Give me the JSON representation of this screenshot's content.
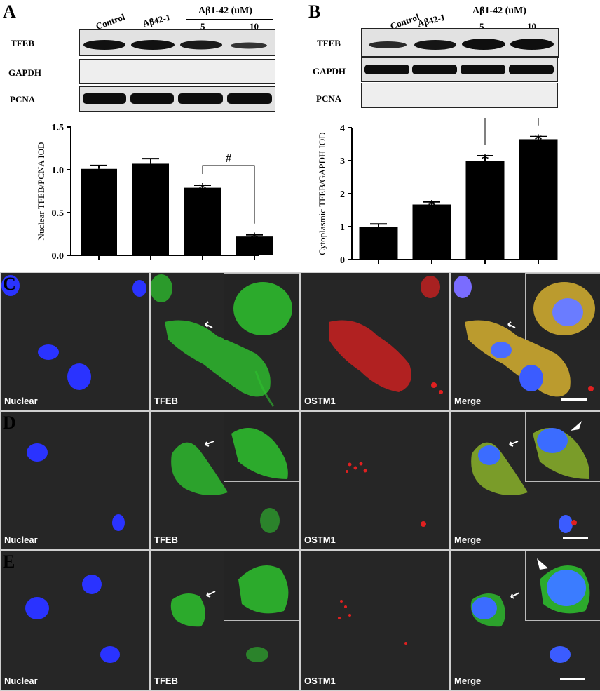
{
  "panel_labels": {
    "a": "A",
    "b": "B",
    "c": "C",
    "d": "D",
    "e": "E"
  },
  "blots": {
    "lane_headers": {
      "control": "Control",
      "reverse": "Aβ42-1",
      "abeta": "Aβ1-42 (uM)",
      "dose_low": "5",
      "dose_high": "10"
    },
    "rows": {
      "tfeb": "TFEB",
      "gapdh": "GAPDH",
      "pcna": "PCNA"
    }
  },
  "chart_data": [
    {
      "type": "bar",
      "categories": [
        "Control",
        "Aβ42-1",
        "Aβ1-42 5uM",
        "Aβ1-42 10uM"
      ],
      "values": [
        1.01,
        1.07,
        0.79,
        0.22
      ],
      "errors": [
        0.04,
        0.06,
        0.03,
        0.02
      ],
      "significance": [
        "",
        "",
        "*",
        "*"
      ],
      "bracket": {
        "from": 2,
        "to": 3,
        "label": "#"
      },
      "ylabel": "Nuclear TFEB/PCNA IOD",
      "ylim": [
        0,
        1.5
      ],
      "yticks": [
        "0.0",
        "0.5",
        "1.0",
        "1.5"
      ]
    },
    {
      "type": "bar",
      "categories": [
        "Control",
        "Aβ42-1",
        "Aβ1-42 5uM",
        "Aβ1-42 10uM"
      ],
      "values": [
        1.0,
        1.67,
        3.0,
        3.65
      ],
      "errors": [
        0.08,
        0.08,
        0.15,
        0.08
      ],
      "significance": [
        "",
        "*",
        "*",
        "*"
      ],
      "bracket": {
        "from": 2,
        "to": 3,
        "label": "#"
      },
      "ylabel": "Cytoplasmic TFEB/GAPDH IOD",
      "ylim": [
        0,
        4
      ],
      "yticks": [
        "0",
        "1",
        "2",
        "3",
        "4"
      ]
    }
  ],
  "micrographs": {
    "channels": {
      "nuclear": "Nuclear",
      "tfeb": "TFEB",
      "ostm1": "OSTM1",
      "merge": "Merge"
    },
    "colors": {
      "nuclear": "#2a33ff",
      "tfeb": "#2ec22e",
      "ostm1": "#e02020",
      "merge_yellow": "#d6b030",
      "background": "#262626"
    }
  }
}
